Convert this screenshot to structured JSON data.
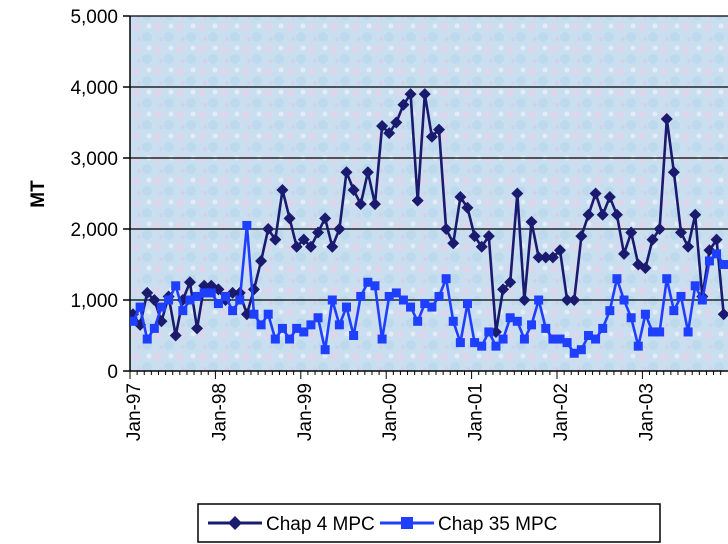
{
  "chart_data": {
    "type": "line",
    "ylabel": "MT",
    "xlabel": "",
    "ylim": [
      0,
      5000
    ],
    "yticks": [
      0,
      1000,
      2000,
      3000,
      4000,
      5000
    ],
    "ytick_labels": [
      "0",
      "1,000",
      "2,000",
      "3,000",
      "4,000",
      "5,000"
    ],
    "xtick_labels": [
      "Jan-97",
      "Jan-98",
      "Jan-99",
      "Jan-00",
      "Jan-01",
      "Jan-02",
      "Jan-03"
    ],
    "grid": true,
    "legend_position": "bottom",
    "x_start": "Jan-97",
    "x_frequency": "monthly",
    "series": [
      {
        "name": "Chap 4 MPC",
        "color": "#1a1a6e",
        "marker": "diamond",
        "values": [
          800,
          650,
          1100,
          1000,
          700,
          1050,
          500,
          1000,
          1250,
          600,
          1200,
          1200,
          1150,
          1000,
          1100,
          1100,
          800,
          1150,
          1550,
          2000,
          1850,
          2550,
          2150,
          1750,
          1850,
          1750,
          1950,
          2150,
          1750,
          2000,
          2800,
          2550,
          2350,
          2800,
          2350,
          3450,
          3350,
          3500,
          3750,
          3900,
          2400,
          3900,
          3300,
          3400,
          2000,
          1800,
          2450,
          2300,
          1900,
          1750,
          1900,
          550,
          1150,
          1250,
          2500,
          1000,
          2100,
          1600,
          1600,
          1600,
          1700,
          1000,
          1000,
          1900,
          2200,
          2500,
          2200,
          2450,
          2200,
          1650,
          1950,
          1500,
          1450,
          1850,
          2000,
          3550,
          2800,
          1950,
          1750,
          2200,
          1050,
          1700,
          1850,
          800
        ]
      },
      {
        "name": "Chap 35 MPC",
        "color": "#1f3fff",
        "marker": "square",
        "values": [
          700,
          900,
          450,
          600,
          900,
          1000,
          1200,
          850,
          1000,
          1050,
          1100,
          1100,
          950,
          1050,
          850,
          1000,
          2050,
          800,
          650,
          800,
          450,
          600,
          450,
          600,
          550,
          650,
          750,
          300,
          1000,
          650,
          900,
          500,
          1050,
          1250,
          1200,
          450,
          1050,
          1100,
          1000,
          900,
          700,
          950,
          900,
          1050,
          1300,
          700,
          400,
          950,
          400,
          350,
          550,
          350,
          450,
          750,
          700,
          450,
          650,
          1000,
          600,
          450,
          450,
          400,
          250,
          300,
          500,
          450,
          600,
          850,
          1300,
          1000,
          750,
          350,
          800,
          550,
          550,
          1300,
          850,
          1050,
          550,
          1200,
          1000,
          1550,
          1650,
          1500
        ]
      }
    ]
  }
}
